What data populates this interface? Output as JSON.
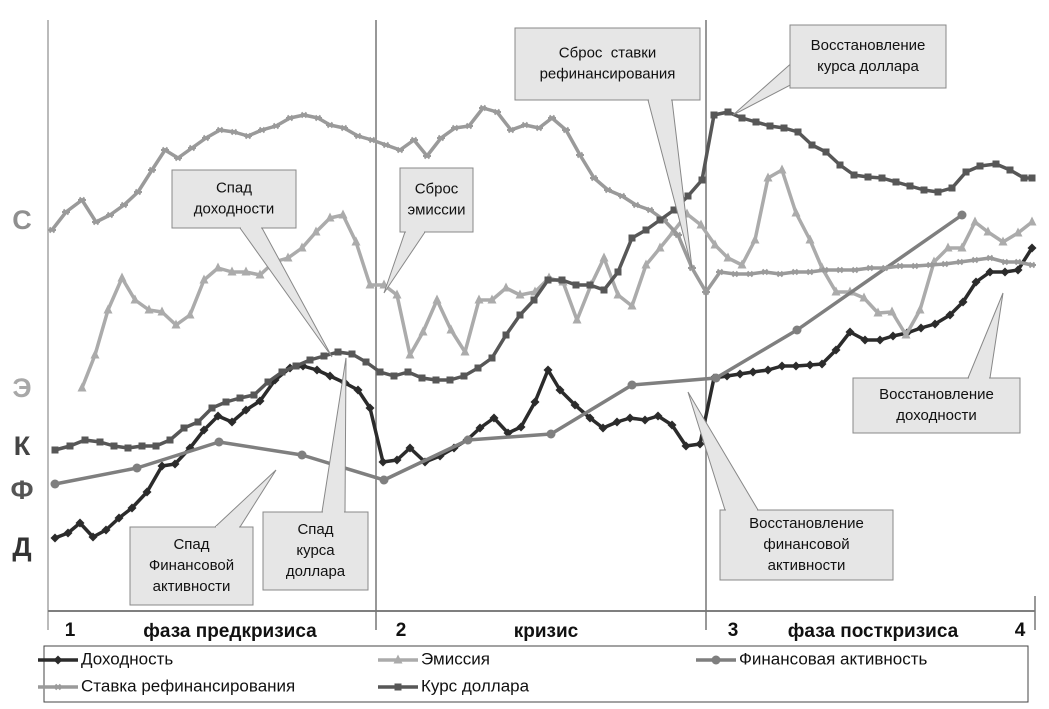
{
  "chart_data": {
    "type": "line",
    "xlim": [
      0,
      987
    ],
    "ylim": [
      0,
      590
    ],
    "xticks": [
      {
        "value": 0,
        "label": "1"
      },
      {
        "value": 328,
        "label": "2"
      },
      {
        "value": 658,
        "label": "3"
      },
      {
        "value": 987,
        "label": "4"
      }
    ],
    "phases": [
      "фаза предкризиса",
      "кризис",
      "фаза посткризиса"
    ],
    "y_labels": [
      "С",
      "Э",
      "К",
      "Ф",
      "Д"
    ],
    "annotations": [
      [
        "Спад",
        "доходности"
      ],
      [
        "Сброс",
        "эмиссии"
      ],
      [
        "Сброс  ставки",
        "рефинансирования"
      ],
      [
        "Восстановление",
        "курса доллара"
      ],
      [
        "Восстановление",
        "доходности"
      ],
      [
        "Восстановление",
        "финансовой",
        "активности"
      ],
      [
        "Спад",
        "Финансовой",
        "активности"
      ],
      [
        "Спад",
        "курса",
        "доллара"
      ]
    ],
    "series": [
      {
        "name": "Доходность",
        "color": "#2b2b2b",
        "marker": "diamond",
        "x": [
          7,
          20,
          32,
          45,
          58,
          71,
          84,
          99,
          114,
          127,
          142,
          156,
          170,
          184,
          198,
          212,
          227,
          242,
          255,
          269,
          282,
          297,
          310,
          322,
          335,
          349,
          362,
          377,
          392,
          406,
          419,
          432,
          446,
          460,
          473,
          487,
          500,
          512,
          527,
          542,
          555,
          569,
          582,
          597,
          610,
          624,
          638,
          652,
          666,
          679,
          692,
          705,
          720,
          734,
          748,
          762,
          774,
          788,
          802,
          817,
          832,
          845,
          859,
          873,
          887,
          902,
          915,
          928,
          942,
          957,
          970,
          984
        ],
        "values": [
          72,
          77,
          87,
          73,
          80,
          92,
          102,
          118,
          144,
          146,
          162,
          180,
          194,
          188,
          200,
          209,
          230,
          242,
          244,
          240,
          234,
          227,
          220,
          202,
          148,
          150,
          162,
          148,
          154,
          162,
          170,
          182,
          192,
          177,
          183,
          208,
          240,
          220,
          205,
          192,
          182,
          188,
          192,
          190,
          194,
          185,
          164,
          166,
          232,
          234,
          236,
          238,
          240,
          244,
          244,
          245,
          246,
          260,
          278,
          270,
          270,
          274,
          277,
          282,
          286,
          295,
          308,
          328,
          338,
          338,
          340,
          362
        ]
      },
      {
        "name": "Эмиссия",
        "color": "#ababab",
        "marker": "triangle",
        "x": [
          34,
          47,
          60,
          74,
          87,
          101,
          114,
          128,
          142,
          156,
          170,
          184,
          198,
          212,
          226,
          240,
          254,
          268,
          282,
          295,
          308,
          322,
          336,
          349,
          362,
          375,
          389,
          403,
          417,
          431,
          444,
          458,
          472,
          487,
          501,
          515,
          529,
          543,
          556,
          570,
          584,
          598,
          612,
          625,
          639,
          653,
          667,
          680,
          694,
          707,
          720,
          734,
          748,
          762,
          774,
          788,
          802,
          816,
          830,
          844,
          858,
          872,
          886,
          900,
          914,
          927,
          940,
          955,
          970,
          984
        ],
        "values": [
          222,
          255,
          300,
          332,
          310,
          300,
          298,
          285,
          295,
          330,
          342,
          338,
          338,
          335,
          348,
          352,
          362,
          378,
          392,
          395,
          368,
          325,
          325,
          315,
          255,
          278,
          310,
          280,
          258,
          310,
          310,
          322,
          315,
          318,
          332,
          328,
          290,
          325,
          352,
          315,
          304,
          345,
          362,
          378,
          396,
          385,
          365,
          352,
          345,
          370,
          432,
          440,
          397,
          370,
          342,
          318,
          318,
          312,
          297,
          298,
          275,
          300,
          348,
          362,
          362,
          388,
          378,
          368,
          377,
          388
        ]
      },
      {
        "name": "Финансовая активность",
        "color": "#7f7f7f",
        "marker": "circle",
        "x": [
          7,
          89,
          171,
          254,
          336,
          420,
          503,
          584,
          668,
          749,
          914
        ],
        "values": [
          126,
          142,
          168,
          155,
          130,
          170,
          176,
          225,
          232,
          280,
          395
        ]
      },
      {
        "name": "Ставка рефинансирования",
        "color": "#9a9a9a",
        "marker": "cross",
        "x": [
          4,
          18,
          34,
          48,
          62,
          76,
          90,
          104,
          117,
          130,
          144,
          158,
          172,
          186,
          200,
          214,
          228,
          242,
          256,
          270,
          282,
          296,
          310,
          324,
          338,
          352,
          366,
          379,
          393,
          407,
          421,
          435,
          449,
          463,
          477,
          491,
          504,
          518,
          532,
          546,
          560,
          574,
          588,
          602,
          616,
          630,
          644,
          658,
          672,
          687,
          702,
          717,
          732,
          747,
          762,
          777,
          792,
          807,
          822,
          837,
          852,
          867,
          882,
          897,
          912,
          927,
          942,
          957,
          970,
          984
        ],
        "values": [
          380,
          398,
          410,
          388,
          395,
          405,
          418,
          440,
          460,
          452,
          462,
          472,
          480,
          478,
          474,
          480,
          484,
          492,
          495,
          492,
          485,
          482,
          474,
          470,
          465,
          460,
          470,
          454,
          472,
          482,
          484,
          502,
          498,
          480,
          485,
          482,
          492,
          480,
          455,
          432,
          420,
          414,
          405,
          400,
          390,
          375,
          342,
          318,
          338,
          336,
          336,
          338,
          336,
          338,
          338,
          340,
          340,
          340,
          342,
          342,
          344,
          344,
          345,
          346,
          348,
          350,
          352,
          348,
          348,
          345
        ]
      },
      {
        "name": "Курс доллара",
        "color": "#575757",
        "marker": "square",
        "x": [
          7,
          22,
          37,
          52,
          66,
          80,
          94,
          108,
          122,
          136,
          150,
          164,
          178,
          192,
          206,
          220,
          234,
          248,
          262,
          276,
          290,
          304,
          318,
          332,
          346,
          360,
          374,
          388,
          402,
          416,
          430,
          444,
          458,
          472,
          486,
          500,
          514,
          528,
          542,
          556,
          570,
          584,
          598,
          612,
          626,
          640,
          654,
          666,
          680,
          694,
          708,
          722,
          736,
          750,
          764,
          778,
          792,
          806,
          820,
          834,
          848,
          862,
          876,
          890,
          904,
          918,
          932,
          948,
          962,
          976,
          984
        ],
        "values": [
          160,
          164,
          170,
          168,
          164,
          162,
          164,
          164,
          170,
          182,
          188,
          202,
          208,
          212,
          215,
          228,
          238,
          244,
          250,
          254,
          258,
          256,
          248,
          238,
          234,
          238,
          232,
          230,
          230,
          234,
          242,
          252,
          275,
          295,
          310,
          330,
          330,
          325,
          325,
          320,
          338,
          372,
          380,
          390,
          400,
          414,
          430,
          495,
          498,
          492,
          488,
          484,
          482,
          478,
          465,
          458,
          445,
          435,
          433,
          432,
          428,
          424,
          420,
          418,
          422,
          438,
          444,
          446,
          440,
          432,
          432
        ]
      }
    ]
  }
}
